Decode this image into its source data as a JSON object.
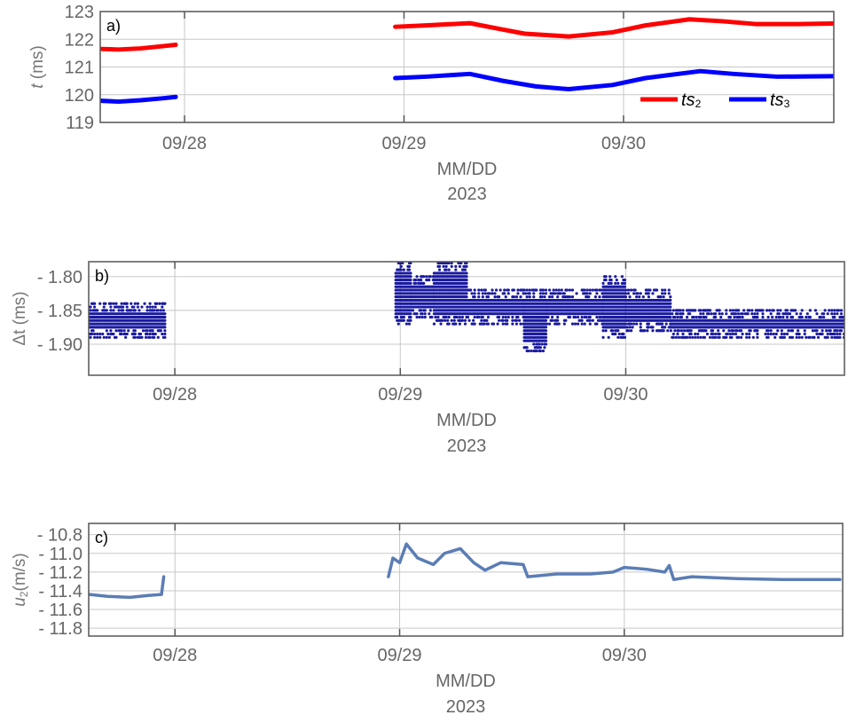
{
  "chart_data": [
    {
      "type": "line",
      "panel_label": "a)",
      "ylabel_main": "t",
      "ylabel_unit": " (ms)",
      "xlabel": "MM/DD",
      "xlabel2": "2023",
      "xlim": [
        27.616,
        30.958
      ],
      "ylim": [
        119,
        123
      ],
      "xticks": [
        {
          "v": 28,
          "label": "09/28"
        },
        {
          "v": 29,
          "label": "09/29"
        },
        {
          "v": 30,
          "label": "09/30"
        }
      ],
      "yticks": [
        {
          "v": 119,
          "label": "119"
        },
        {
          "v": 120,
          "label": "120"
        },
        {
          "v": 121,
          "label": "121"
        },
        {
          "v": 122,
          "label": "122"
        },
        {
          "v": 123,
          "label": "123"
        }
      ],
      "legend_position": "bottom-right",
      "series": [
        {
          "name": "ts",
          "sub": "2",
          "color": "#ff0000",
          "segments": [
            [
              [
                27.62,
                121.65
              ],
              [
                27.7,
                121.63
              ],
              [
                27.8,
                121.67
              ],
              [
                27.9,
                121.75
              ],
              [
                27.96,
                121.8
              ]
            ],
            [
              [
                28.96,
                122.45
              ],
              [
                29.1,
                122.5
              ],
              [
                29.3,
                122.58
              ],
              [
                29.45,
                122.35
              ],
              [
                29.55,
                122.2
              ],
              [
                29.75,
                122.1
              ],
              [
                29.95,
                122.25
              ],
              [
                30.1,
                122.5
              ],
              [
                30.3,
                122.72
              ],
              [
                30.45,
                122.65
              ],
              [
                30.6,
                122.55
              ],
              [
                30.8,
                122.55
              ],
              [
                30.96,
                122.57
              ]
            ]
          ]
        },
        {
          "name": "ts",
          "sub": "3",
          "color": "#0000ff",
          "segments": [
            [
              [
                27.62,
                119.78
              ],
              [
                27.7,
                119.75
              ],
              [
                27.8,
                119.8
              ],
              [
                27.9,
                119.87
              ],
              [
                27.96,
                119.92
              ]
            ],
            [
              [
                28.96,
                120.6
              ],
              [
                29.1,
                120.65
              ],
              [
                29.3,
                120.75
              ],
              [
                29.45,
                120.5
              ],
              [
                29.6,
                120.3
              ],
              [
                29.75,
                120.2
              ],
              [
                29.95,
                120.35
              ],
              [
                30.1,
                120.6
              ],
              [
                30.35,
                120.85
              ],
              [
                30.5,
                120.75
              ],
              [
                30.7,
                120.65
              ],
              [
                30.96,
                120.67
              ]
            ]
          ]
        }
      ]
    },
    {
      "type": "scatter",
      "panel_label": "b)",
      "ylabel_main": "Δt",
      "ylabel_unit": "  (ms)",
      "xlabel": "MM/DD",
      "xlabel2": "2023",
      "xlim": [
        27.618,
        30.97
      ],
      "ylim": [
        -1.946,
        -1.778
      ],
      "xticks": [
        {
          "v": 28,
          "label": "09/28"
        },
        {
          "v": 29,
          "label": "09/29"
        },
        {
          "v": 30,
          "label": "09/30"
        }
      ],
      "yticks": [
        {
          "v": -1.8,
          "label": "- 1.80"
        },
        {
          "v": -1.85,
          "label": "- 1.85"
        },
        {
          "v": -1.9,
          "label": "- 1.90"
        }
      ],
      "color": "#1a1aa0",
      "level_step": 0.005,
      "bands": [
        [
          27.62,
          27.96,
          -1.89,
          -1.84
        ],
        [
          28.98,
          29.05,
          -1.87,
          -1.78
        ],
        [
          29.05,
          29.15,
          -1.86,
          -1.8
        ],
        [
          29.15,
          29.3,
          -1.87,
          -1.78
        ],
        [
          29.3,
          29.55,
          -1.87,
          -1.82
        ],
        [
          29.55,
          29.65,
          -1.91,
          -1.82
        ],
        [
          29.65,
          29.9,
          -1.87,
          -1.82
        ],
        [
          29.9,
          30.0,
          -1.89,
          -1.8
        ],
        [
          30.0,
          30.2,
          -1.88,
          -1.82
        ],
        [
          30.2,
          30.97,
          -1.89,
          -1.85
        ]
      ]
    },
    {
      "type": "line",
      "panel_label": "c)",
      "ylabel_main": "u",
      "ylabel_sub": "2",
      "ylabel_unit": "(m/s)",
      "xlabel": "MM/DD",
      "xlabel2": "2023",
      "xlim": [
        27.616,
        30.972
      ],
      "ylim": [
        -11.884,
        -10.68
      ],
      "xticks": [
        {
          "v": 28,
          "label": "09/28"
        },
        {
          "v": 29,
          "label": "09/29"
        },
        {
          "v": 30,
          "label": "09/30"
        }
      ],
      "yticks": [
        {
          "v": -10.8,
          "label": "- 10.8"
        },
        {
          "v": -11.0,
          "label": "- 11.0"
        },
        {
          "v": -11.2,
          "label": "- 11.2"
        },
        {
          "v": -11.4,
          "label": "- 11.4"
        },
        {
          "v": -11.6,
          "label": "- 11.6"
        },
        {
          "v": -11.8,
          "label": "- 11.8"
        }
      ],
      "series": [
        {
          "name": "u2",
          "color": "#5b7db5",
          "segments": [
            [
              [
                27.62,
                -11.44
              ],
              [
                27.7,
                -11.46
              ],
              [
                27.8,
                -11.47
              ],
              [
                27.88,
                -11.45
              ],
              [
                27.94,
                -11.44
              ],
              [
                27.95,
                -11.25
              ]
            ],
            [
              [
                28.95,
                -11.25
              ],
              [
                28.97,
                -11.05
              ],
              [
                29.0,
                -11.1
              ],
              [
                29.03,
                -10.9
              ],
              [
                29.08,
                -11.05
              ],
              [
                29.15,
                -11.12
              ],
              [
                29.2,
                -11.0
              ],
              [
                29.27,
                -10.95
              ],
              [
                29.33,
                -11.1
              ],
              [
                29.38,
                -11.18
              ],
              [
                29.45,
                -11.1
              ],
              [
                29.55,
                -11.12
              ],
              [
                29.57,
                -11.25
              ],
              [
                29.7,
                -11.22
              ],
              [
                29.85,
                -11.22
              ],
              [
                29.95,
                -11.2
              ],
              [
                30.0,
                -11.15
              ],
              [
                30.1,
                -11.17
              ],
              [
                30.18,
                -11.2
              ],
              [
                30.2,
                -11.13
              ],
              [
                30.22,
                -11.28
              ],
              [
                30.3,
                -11.25
              ],
              [
                30.5,
                -11.27
              ],
              [
                30.7,
                -11.28
              ],
              [
                30.96,
                -11.28
              ]
            ]
          ]
        }
      ]
    }
  ]
}
